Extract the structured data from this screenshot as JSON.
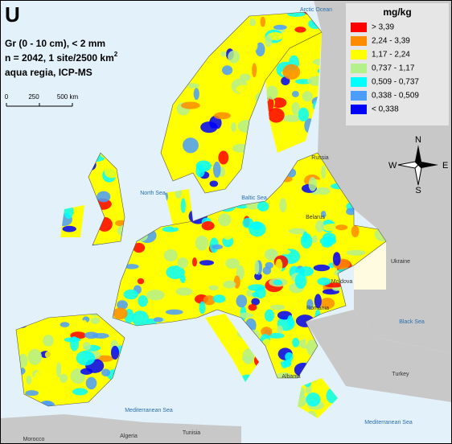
{
  "title": "U",
  "subtitle_lines": [
    "Gr (0 - 10 cm), < 2 mm",
    "n = 2042, 1 site/2500 km",
    "aqua regia, ICP-MS"
  ],
  "superscript": "2",
  "scale_bar": [
    "0",
    "250",
    "500 km"
  ],
  "legend": {
    "title": "mg/kg",
    "items": [
      {
        "label": "> 3,39",
        "color": "#ff0000"
      },
      {
        "label": "2,24 - 3,39",
        "color": "#ff8c00"
      },
      {
        "label": "1,17 - 2,24",
        "color": "#ffff00"
      },
      {
        "label": "0,737 - 1,17",
        "color": "#b4f08c"
      },
      {
        "label": "0,509 - 0,737",
        "color": "#00ffff"
      },
      {
        "label": "0,338 - 0,509",
        "color": "#4a9cff"
      },
      {
        "label": "< 0,338",
        "color": "#0000ff"
      }
    ]
  },
  "compass": [
    "N",
    "E",
    "S",
    "W"
  ],
  "map_labels": [
    "Arctic Ocean",
    "Russia",
    "North Sea",
    "Baltic Sea",
    "Belarus",
    "Ukraine",
    "Moldova",
    "Romania",
    "Black Sea",
    "Turkey",
    "Albania",
    "Mediterranean Sea",
    "Mediterranean Sea",
    "Morocco",
    "Algeria",
    "Tunisia"
  ]
}
